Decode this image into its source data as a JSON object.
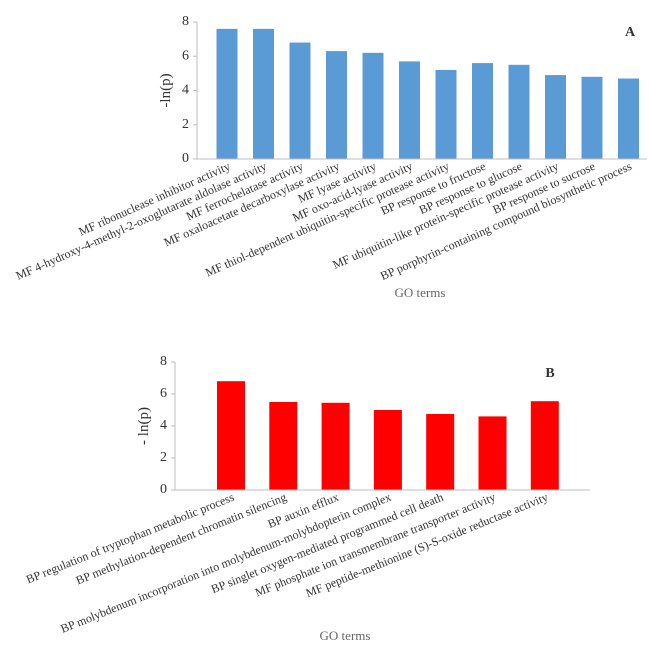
{
  "chart_data": [
    {
      "type": "bar",
      "annotation": "A",
      "xlabel": "GO terms",
      "ylabel": "-ln(p)",
      "color": "#5b9bd5",
      "categories": [
        "MF ribonuclease inhibitor activity",
        "MF 4-hydroxy-4-methyl-2-oxoglutarate aldolase activity",
        "MF ferrochelatase activity",
        "MF oxaloacetate decarboxylase activity",
        "MF lyase activity",
        "MF oxo-acid-lyase activity",
        "MF thiol-dependent ubiquitin-specific protease activity",
        "BP response to fructose",
        "BP response to glucose",
        "MF ubiquitin-like protein-specific protease activity",
        "BP response to sucrose",
        "BP porphyrin-containing compound biosynthetic process"
      ],
      "values": [
        7.6,
        7.6,
        6.8,
        6.3,
        6.2,
        5.7,
        5.2,
        5.6,
        5.5,
        4.9,
        4.8,
        4.7
      ],
      "ylim": [
        0,
        8
      ],
      "yticks": [
        0,
        2,
        4,
        6,
        8
      ]
    },
    {
      "type": "bar",
      "annotation": "B",
      "xlabel": "GO terms",
      "ylabel": "- ln(p)",
      "color": "#ff0000",
      "categories": [
        "BP regulation of tryptophan metabolic process",
        "BP methylation-dependent chromatin silencing",
        "BP auxin efflux",
        "BP molybdenum incorporation into molybdenum-molybdopterin complex",
        "BP singlet oxygen-mediated programmed cell death",
        "MF phosphate ion transmembrane transporter activity",
        "MF peptide-methionine (S)-S-oxide reductase activity"
      ],
      "values": [
        6.8,
        5.5,
        5.45,
        5.0,
        4.75,
        4.6,
        5.55
      ],
      "ylim": [
        0,
        8
      ],
      "yticks": [
        0,
        2,
        4,
        6,
        8
      ]
    }
  ]
}
